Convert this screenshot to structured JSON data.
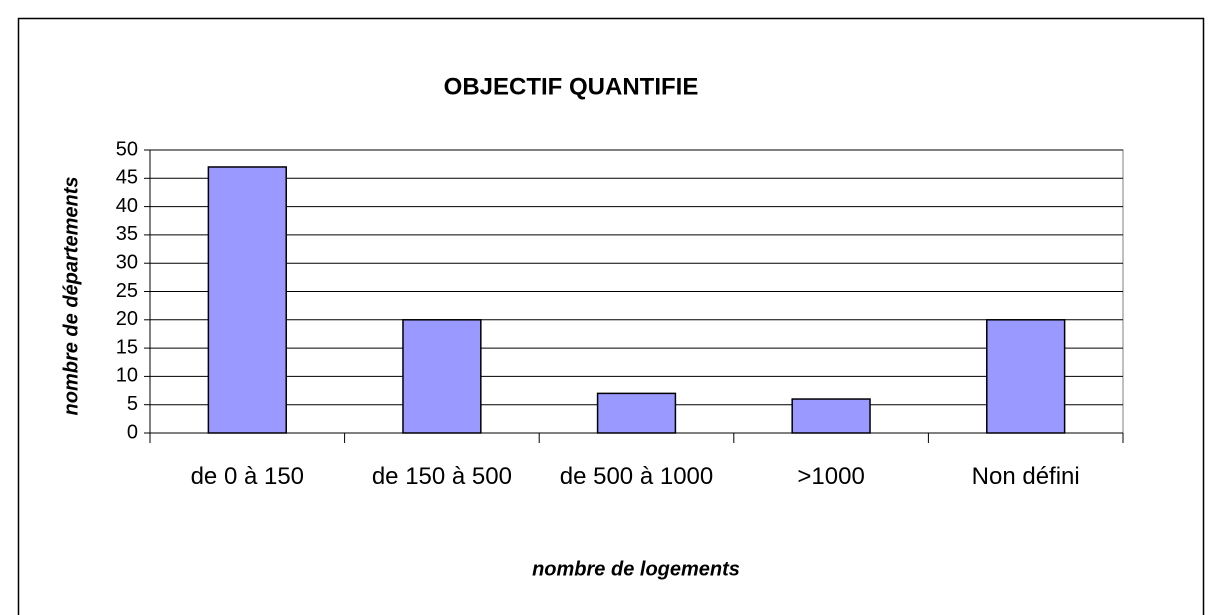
{
  "chart_data": {
    "type": "bar",
    "title": "OBJECTIF QUANTIFIE",
    "x_label": "nombre de logements",
    "y_label": "nombre de départements",
    "categories": [
      "de 0 à 150",
      "de 150 à 500",
      "de 500 à 1000",
      ">1000",
      "Non défini"
    ],
    "values": [
      47,
      20,
      7,
      6,
      20
    ],
    "color": "#9999ff",
    "ylim": [
      0,
      50
    ],
    "yticks": [
      0,
      5,
      10,
      15,
      20,
      25,
      30,
      35,
      40,
      45,
      50
    ],
    "grid": true
  }
}
